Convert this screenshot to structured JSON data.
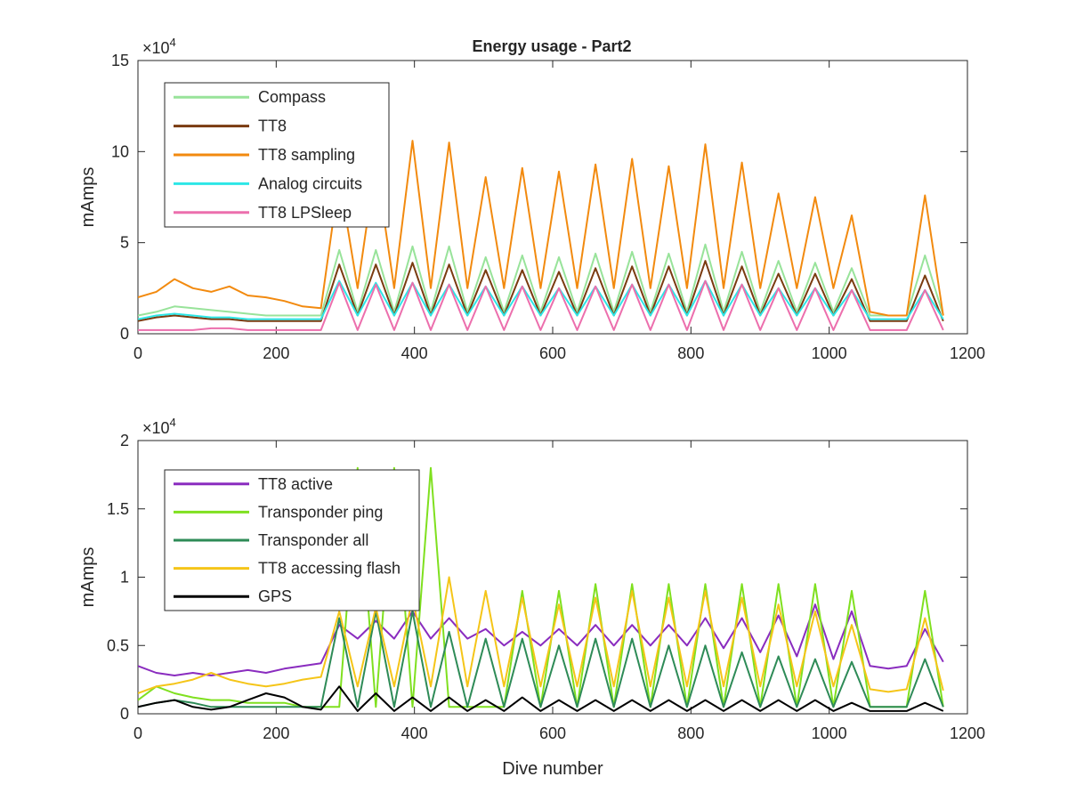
{
  "figure": {
    "title": "Energy usage - Part2"
  },
  "chart_data": [
    {
      "type": "line",
      "title": "Energy usage - Part2",
      "xlabel": "",
      "ylabel": "mAmps",
      "exponent_label": "×10",
      "exponent_power": "4",
      "xlim": [
        0,
        1200
      ],
      "ylim": [
        0,
        15
      ],
      "xticks": [
        0,
        200,
        400,
        600,
        800,
        1000,
        1200
      ],
      "xtick_labels": [
        "0",
        "200",
        "400",
        "600",
        "800",
        "1000",
        "1200"
      ],
      "yticks": [
        0,
        5,
        10,
        15
      ],
      "ytick_labels": [
        "0",
        "5",
        "10",
        "15"
      ],
      "legend_position": "top-left",
      "grid": false,
      "series": [
        {
          "name": "Compass",
          "color": "#98e39a",
          "values": [
            1.0,
            1.2,
            1.5,
            1.4,
            1.3,
            1.2,
            1.1,
            1.0,
            1.0,
            1.0,
            1.0,
            4.6,
            1.2,
            4.6,
            1.2,
            4.8,
            1.2,
            4.8,
            1.2,
            4.2,
            1.2,
            4.3,
            1.2,
            4.2,
            1.2,
            4.4,
            1.2,
            4.5,
            1.2,
            4.4,
            1.2,
            4.9,
            1.2,
            4.5,
            1.2,
            4.0,
            1.2,
            3.9,
            1.2,
            3.6,
            1.0,
            1.0,
            1.0,
            4.3,
            1.0
          ]
        },
        {
          "name": "TT8",
          "color": "#7a3b10",
          "values": [
            0.7,
            0.9,
            1.0,
            0.9,
            0.8,
            0.8,
            0.7,
            0.7,
            0.7,
            0.7,
            0.7,
            3.8,
            1.0,
            3.8,
            1.0,
            3.9,
            1.0,
            3.8,
            1.0,
            3.5,
            1.0,
            3.5,
            1.0,
            3.4,
            1.0,
            3.6,
            1.0,
            3.7,
            1.0,
            3.7,
            1.0,
            4.0,
            1.0,
            3.7,
            1.0,
            3.3,
            1.0,
            3.3,
            1.0,
            3.0,
            0.7,
            0.7,
            0.7,
            3.2,
            0.7
          ]
        },
        {
          "name": "TT8 sampling",
          "color": "#f28a0f",
          "values": [
            2.0,
            2.3,
            3.0,
            2.5,
            2.3,
            2.6,
            2.1,
            2.0,
            1.8,
            1.5,
            1.4,
            8.6,
            2.5,
            9.4,
            2.5,
            10.6,
            2.5,
            10.5,
            2.5,
            8.6,
            2.5,
            9.1,
            2.5,
            8.9,
            2.5,
            9.3,
            2.5,
            9.6,
            2.5,
            9.2,
            2.5,
            10.4,
            2.5,
            9.4,
            2.5,
            7.7,
            2.5,
            7.5,
            2.5,
            6.5,
            1.2,
            1.0,
            1.0,
            7.6,
            1.0
          ]
        },
        {
          "name": "Analog circuits",
          "color": "#2de6e6",
          "values": [
            0.8,
            1.0,
            1.1,
            1.0,
            0.9,
            0.9,
            0.8,
            0.8,
            0.8,
            0.8,
            0.8,
            2.9,
            1.0,
            2.8,
            1.0,
            2.8,
            1.0,
            2.7,
            1.0,
            2.6,
            1.0,
            2.6,
            1.0,
            2.5,
            1.0,
            2.6,
            1.0,
            2.7,
            1.0,
            2.7,
            1.0,
            2.9,
            1.0,
            2.7,
            1.0,
            2.5,
            1.0,
            2.5,
            1.0,
            2.4,
            0.8,
            0.8,
            0.8,
            2.4,
            0.8
          ]
        },
        {
          "name": "TT8 LPSleep",
          "color": "#ec6fad",
          "values": [
            0.2,
            0.2,
            0.2,
            0.2,
            0.3,
            0.3,
            0.2,
            0.2,
            0.2,
            0.2,
            0.2,
            2.8,
            0.2,
            2.7,
            0.2,
            2.8,
            0.2,
            2.7,
            0.2,
            2.6,
            0.2,
            2.6,
            0.2,
            2.5,
            0.2,
            2.6,
            0.2,
            2.7,
            0.2,
            2.7,
            0.2,
            2.9,
            0.2,
            2.7,
            0.2,
            2.5,
            0.2,
            2.5,
            0.2,
            2.4,
            0.2,
            0.2,
            0.2,
            2.4,
            0.2
          ]
        }
      ]
    },
    {
      "type": "line",
      "title": "",
      "xlabel": "Dive number",
      "ylabel": "mAmps",
      "exponent_label": "×10",
      "exponent_power": "4",
      "xlim": [
        0,
        1200
      ],
      "ylim": [
        0,
        2
      ],
      "xticks": [
        0,
        200,
        400,
        600,
        800,
        1000,
        1200
      ],
      "xtick_labels": [
        "0",
        "200",
        "400",
        "600",
        "800",
        "1000",
        "1200"
      ],
      "yticks": [
        0,
        0.5,
        1,
        1.5,
        2
      ],
      "ytick_labels": [
        "0",
        "0.5",
        "1",
        "1.5",
        "2"
      ],
      "legend_position": "top-left",
      "grid": false,
      "series": [
        {
          "name": "TT8 active",
          "color": "#8a2cbf",
          "values": [
            0.35,
            0.3,
            0.28,
            0.3,
            0.28,
            0.3,
            0.32,
            0.3,
            0.33,
            0.35,
            0.37,
            0.65,
            0.55,
            0.68,
            0.55,
            0.75,
            0.55,
            0.7,
            0.55,
            0.62,
            0.5,
            0.6,
            0.5,
            0.62,
            0.5,
            0.65,
            0.5,
            0.65,
            0.5,
            0.65,
            0.5,
            0.7,
            0.48,
            0.7,
            0.45,
            0.72,
            0.42,
            0.8,
            0.4,
            0.75,
            0.35,
            0.33,
            0.35,
            0.62,
            0.38
          ]
        },
        {
          "name": "Transponder ping",
          "color": "#7fe01f",
          "values": [
            0.1,
            0.2,
            0.15,
            0.12,
            0.1,
            0.1,
            0.08,
            0.08,
            0.08,
            0.05,
            0.05,
            0.05,
            1.8,
            0.05,
            1.8,
            0.05,
            1.8,
            0.05,
            0.05,
            0.05,
            0.05,
            0.9,
            0.05,
            0.9,
            0.05,
            0.95,
            0.05,
            0.95,
            0.05,
            0.95,
            0.05,
            0.95,
            0.05,
            0.95,
            0.05,
            0.95,
            0.05,
            0.95,
            0.05,
            0.9,
            0.05,
            0.05,
            0.05,
            0.9,
            0.05
          ]
        },
        {
          "name": "Transponder all",
          "color": "#2e8b57",
          "values": [
            0.05,
            0.08,
            0.1,
            0.08,
            0.05,
            0.05,
            0.05,
            0.05,
            0.05,
            0.05,
            0.05,
            0.7,
            0.05,
            0.75,
            0.05,
            0.75,
            0.05,
            0.6,
            0.05,
            0.55,
            0.05,
            0.55,
            0.05,
            0.5,
            0.05,
            0.55,
            0.05,
            0.55,
            0.05,
            0.5,
            0.05,
            0.5,
            0.05,
            0.45,
            0.05,
            0.42,
            0.05,
            0.4,
            0.05,
            0.38,
            0.05,
            0.05,
            0.05,
            0.4,
            0.05
          ]
        },
        {
          "name": "TT8 accessing flash",
          "color": "#f5c518",
          "values": [
            0.15,
            0.2,
            0.22,
            0.25,
            0.3,
            0.25,
            0.22,
            0.2,
            0.22,
            0.25,
            0.27,
            0.75,
            0.2,
            0.78,
            0.2,
            0.85,
            0.2,
            1.0,
            0.2,
            0.9,
            0.2,
            0.85,
            0.2,
            0.8,
            0.2,
            0.85,
            0.2,
            0.9,
            0.2,
            0.85,
            0.2,
            0.9,
            0.2,
            0.85,
            0.2,
            0.8,
            0.2,
            0.75,
            0.2,
            0.65,
            0.18,
            0.16,
            0.18,
            0.7,
            0.17
          ]
        },
        {
          "name": "GPS",
          "color": "#000000",
          "values": [
            0.05,
            0.08,
            0.1,
            0.05,
            0.03,
            0.05,
            0.1,
            0.15,
            0.12,
            0.05,
            0.03,
            0.2,
            0.02,
            0.15,
            0.02,
            0.12,
            0.02,
            0.12,
            0.02,
            0.1,
            0.02,
            0.12,
            0.02,
            0.1,
            0.02,
            0.1,
            0.02,
            0.1,
            0.02,
            0.1,
            0.02,
            0.1,
            0.02,
            0.1,
            0.02,
            0.1,
            0.02,
            0.1,
            0.02,
            0.08,
            0.02,
            0.02,
            0.02,
            0.08,
            0.02
          ]
        }
      ]
    }
  ]
}
